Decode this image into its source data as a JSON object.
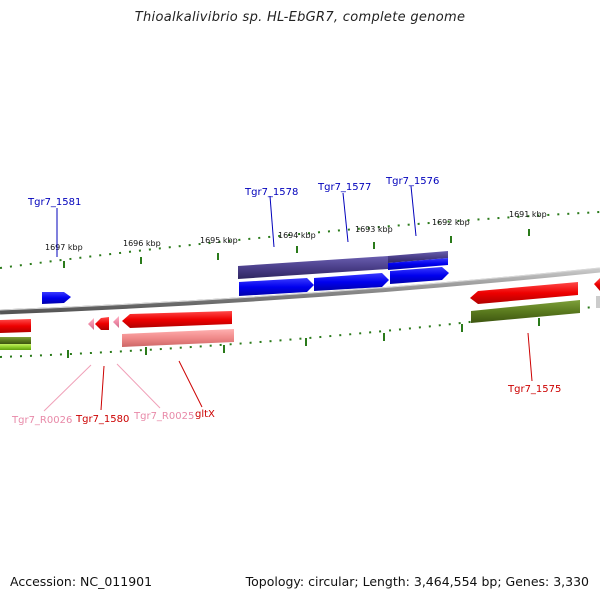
{
  "title": "Thioalkalivibrio sp. HL-EbGR7, complete genome",
  "footer": {
    "accession": "Accession: NC_011901",
    "stats": "Topology: circular; Length: 3,464,554 bp; Genes: 3,330"
  },
  "kbp_labels": [
    "1697 kbp",
    "1696 kbp",
    "1695 kbp",
    "1694 kbp",
    "1693 kbp",
    "1692 kbp",
    "1691 kbp"
  ],
  "gene_labels": {
    "tgr7_1581": "Tgr7_1581",
    "tgr7_1578": "Tgr7_1578",
    "tgr7_1577": "Tgr7_1577",
    "tgr7_1576": "Tgr7_1576",
    "tgr7_r0026": "Tgr7_R0026",
    "tgr7_1580": "Tgr7_1580",
    "tgr7_r0025": "Tgr7_R0025",
    "gltx": "gltX",
    "tgr7_1575": "Tgr7_1575"
  },
  "colors": {
    "cds_forward": "#0000ee",
    "cds_reverse": "#ee0000",
    "cog_purple": "#4b3f8a",
    "cog_olive": "#5a7a1e",
    "cog_lime": "#8ecf2a",
    "rna_pink": "#f08ca8",
    "label_blue": "#0000bb",
    "label_red": "#cc0000",
    "label_pink": "#e889a8",
    "backbone": "#8a8a8a",
    "tick_green": "#2a7a1a"
  }
}
